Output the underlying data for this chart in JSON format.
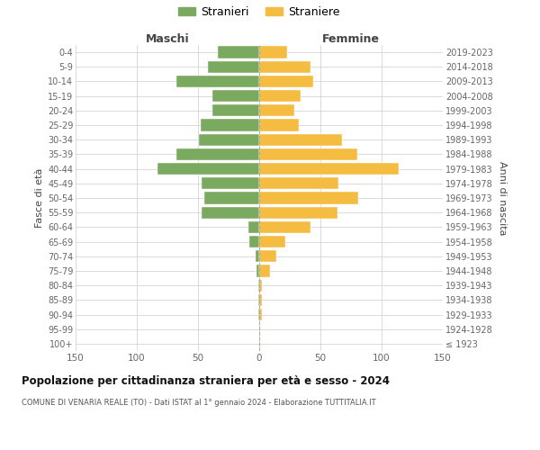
{
  "age_groups": [
    "100+",
    "95-99",
    "90-94",
    "85-89",
    "80-84",
    "75-79",
    "70-74",
    "65-69",
    "60-64",
    "55-59",
    "50-54",
    "45-49",
    "40-44",
    "35-39",
    "30-34",
    "25-29",
    "20-24",
    "15-19",
    "10-14",
    "5-9",
    "0-4"
  ],
  "birth_years": [
    "≤ 1923",
    "1924-1928",
    "1929-1933",
    "1934-1938",
    "1939-1943",
    "1944-1948",
    "1949-1953",
    "1954-1958",
    "1959-1963",
    "1964-1968",
    "1969-1973",
    "1974-1978",
    "1979-1983",
    "1984-1988",
    "1989-1993",
    "1994-1998",
    "1999-2003",
    "2004-2008",
    "2009-2013",
    "2014-2018",
    "2019-2023"
  ],
  "males": [
    0,
    0,
    1,
    1,
    1,
    2,
    3,
    8,
    9,
    47,
    45,
    47,
    83,
    68,
    49,
    48,
    38,
    38,
    68,
    42,
    34
  ],
  "females": [
    1,
    1,
    2,
    2,
    2,
    9,
    14,
    21,
    42,
    64,
    81,
    65,
    114,
    80,
    68,
    32,
    29,
    34,
    44,
    42,
    23
  ],
  "male_color": "#7aaa5f",
  "female_color": "#f5bc42",
  "title": "Popolazione per cittadinanza straniera per età e sesso - 2024",
  "subtitle": "COMUNE DI VENARIA REALE (TO) - Dati ISTAT al 1° gennaio 2024 - Elaborazione TUTTITALIA.IT",
  "xlabel_left": "Maschi",
  "xlabel_right": "Femmine",
  "ylabel_left": "Fasce di età",
  "ylabel_right": "Anni di nascita",
  "legend_males": "Stranieri",
  "legend_females": "Straniere",
  "xlim": 150,
  "bg_color": "#ffffff",
  "grid_color": "#cccccc",
  "tick_color": "#666666",
  "label_color": "#444444",
  "title_color": "#111111",
  "subtitle_color": "#555555"
}
